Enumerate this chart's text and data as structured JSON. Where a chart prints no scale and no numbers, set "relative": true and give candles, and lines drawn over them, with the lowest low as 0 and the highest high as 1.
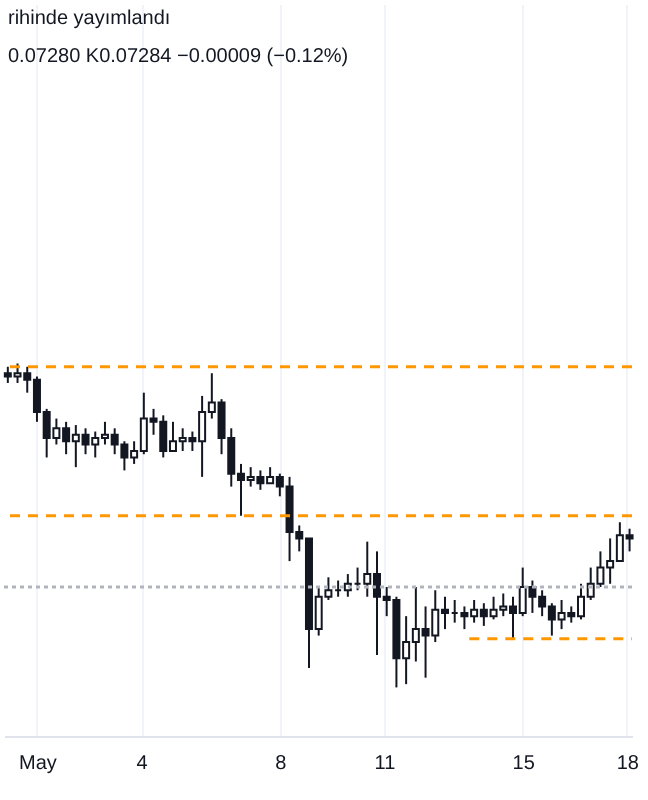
{
  "chart_data": {
    "type": "candlestick",
    "relative": true,
    "annotations": [
      "rihinde yayımlandı",
      "0.07280 K0.07284 −0.00009 (−0.12%)"
    ],
    "x": [
      0.16,
      0.44,
      0.72,
      1.0,
      1.28,
      1.56,
      1.84,
      2.12,
      2.4,
      2.68,
      2.96,
      3.24,
      3.52,
      3.8,
      4.08,
      4.36,
      4.64,
      4.92,
      5.2,
      5.48,
      5.76,
      6.04,
      6.32,
      6.6,
      6.88,
      7.16,
      7.44,
      7.72,
      8.0,
      8.28,
      8.56,
      8.84,
      9.12,
      9.4,
      9.68,
      9.96,
      10.24,
      10.52,
      10.8,
      11.08,
      11.36,
      11.64,
      11.92,
      12.2,
      12.48,
      12.76,
      13.04,
      13.32,
      13.6,
      13.88,
      14.16,
      14.44,
      14.72,
      15.0,
      15.28,
      15.56,
      15.84,
      16.12,
      16.4,
      16.68,
      16.96,
      17.24,
      17.52,
      17.8,
      18.08
    ],
    "xlim": [
      0.05,
      18.15
    ],
    "xticks": [
      {
        "value": 1,
        "label": "May"
      },
      4,
      8,
      11,
      15,
      18
    ],
    "grid": "x",
    "series": [
      {
        "color": "#131722",
        "ohlc": [
          [
            0.97,
            0.99,
            0.94,
            0.96
          ],
          [
            0.96,
            1.0,
            0.94,
            0.97
          ],
          [
            0.97,
            0.99,
            0.91,
            0.95
          ],
          [
            0.95,
            0.96,
            0.82,
            0.85
          ],
          [
            0.85,
            0.86,
            0.71,
            0.77
          ],
          [
            0.77,
            0.83,
            0.75,
            0.8
          ],
          [
            0.8,
            0.82,
            0.72,
            0.76
          ],
          [
            0.76,
            0.81,
            0.68,
            0.78
          ],
          [
            0.78,
            0.8,
            0.72,
            0.75
          ],
          [
            0.75,
            0.79,
            0.71,
            0.77
          ],
          [
            0.77,
            0.82,
            0.75,
            0.78
          ],
          [
            0.78,
            0.8,
            0.72,
            0.75
          ],
          [
            0.75,
            0.76,
            0.67,
            0.71
          ],
          [
            0.71,
            0.76,
            0.69,
            0.73
          ],
          [
            0.73,
            0.91,
            0.72,
            0.83
          ],
          [
            0.83,
            0.86,
            0.78,
            0.82
          ],
          [
            0.82,
            0.84,
            0.71,
            0.73
          ],
          [
            0.73,
            0.82,
            0.73,
            0.76
          ],
          [
            0.76,
            0.8,
            0.73,
            0.77
          ],
          [
            0.77,
            0.79,
            0.73,
            0.76
          ],
          [
            0.76,
            0.9,
            0.65,
            0.85
          ],
          [
            0.85,
            0.97,
            0.83,
            0.88
          ],
          [
            0.88,
            0.89,
            0.72,
            0.77
          ],
          [
            0.77,
            0.8,
            0.62,
            0.66
          ],
          [
            0.66,
            0.69,
            0.53,
            0.64
          ],
          [
            0.64,
            0.68,
            0.62,
            0.65
          ],
          [
            0.65,
            0.67,
            0.61,
            0.63
          ],
          [
            0.63,
            0.68,
            0.63,
            0.65
          ],
          [
            0.65,
            0.66,
            0.59,
            0.62
          ],
          [
            0.62,
            0.65,
            0.39,
            0.48
          ],
          [
            0.48,
            0.5,
            0.42,
            0.46
          ],
          [
            0.46,
            0.46,
            0.06,
            0.18
          ],
          [
            0.18,
            0.31,
            0.16,
            0.28
          ],
          [
            0.28,
            0.34,
            0.27,
            0.3
          ],
          [
            0.3,
            0.33,
            0.28,
            0.3
          ],
          [
            0.3,
            0.35,
            0.28,
            0.32
          ],
          [
            0.32,
            0.37,
            0.3,
            0.32
          ],
          [
            0.32,
            0.45,
            0.28,
            0.35
          ],
          [
            0.35,
            0.42,
            0.1,
            0.28
          ],
          [
            0.28,
            0.31,
            0.22,
            0.27
          ],
          [
            0.27,
            0.28,
            0.0,
            0.09
          ],
          [
            0.09,
            0.22,
            0.01,
            0.14
          ],
          [
            0.14,
            0.31,
            0.08,
            0.18
          ],
          [
            0.18,
            0.25,
            0.03,
            0.16
          ],
          [
            0.16,
            0.3,
            0.14,
            0.24
          ],
          [
            0.24,
            0.28,
            0.18,
            0.23
          ],
          [
            0.23,
            0.27,
            0.2,
            0.23
          ],
          [
            0.23,
            0.25,
            0.18,
            0.22
          ],
          [
            0.22,
            0.27,
            0.2,
            0.24
          ],
          [
            0.24,
            0.26,
            0.19,
            0.22
          ],
          [
            0.22,
            0.28,
            0.21,
            0.24
          ],
          [
            0.24,
            0.29,
            0.22,
            0.25
          ],
          [
            0.25,
            0.28,
            0.15,
            0.23
          ],
          [
            0.23,
            0.37,
            0.22,
            0.31
          ],
          [
            0.31,
            0.33,
            0.23,
            0.28
          ],
          [
            0.28,
            0.3,
            0.22,
            0.25
          ],
          [
            0.25,
            0.26,
            0.16,
            0.21
          ],
          [
            0.21,
            0.27,
            0.18,
            0.23
          ],
          [
            0.23,
            0.25,
            0.2,
            0.22
          ],
          [
            0.22,
            0.32,
            0.21,
            0.28
          ],
          [
            0.28,
            0.37,
            0.27,
            0.32
          ],
          [
            0.32,
            0.42,
            0.31,
            0.37
          ],
          [
            0.37,
            0.46,
            0.32,
            0.39
          ],
          [
            0.39,
            0.51,
            0.39,
            0.47
          ],
          [
            0.47,
            0.49,
            0.42,
            0.46
          ]
        ]
      },
      {
        "type": "line",
        "color": "#ff9800",
        "line_style": "dashed",
        "x": [
          13.46,
          18.15
        ],
        "values": [
          0.15,
          0.15
        ]
      }
    ],
    "ref_lines": [
      {
        "axis": "y",
        "value": 0.99,
        "color": "#ff9800",
        "line_style": "dashed"
      },
      {
        "axis": "y",
        "value": 0.53,
        "color": "#ff9800",
        "line_style": "dashed"
      },
      {
        "axis": "y",
        "value": 0.31,
        "color": "#b2b5be",
        "line_style": "dotted"
      }
    ]
  }
}
